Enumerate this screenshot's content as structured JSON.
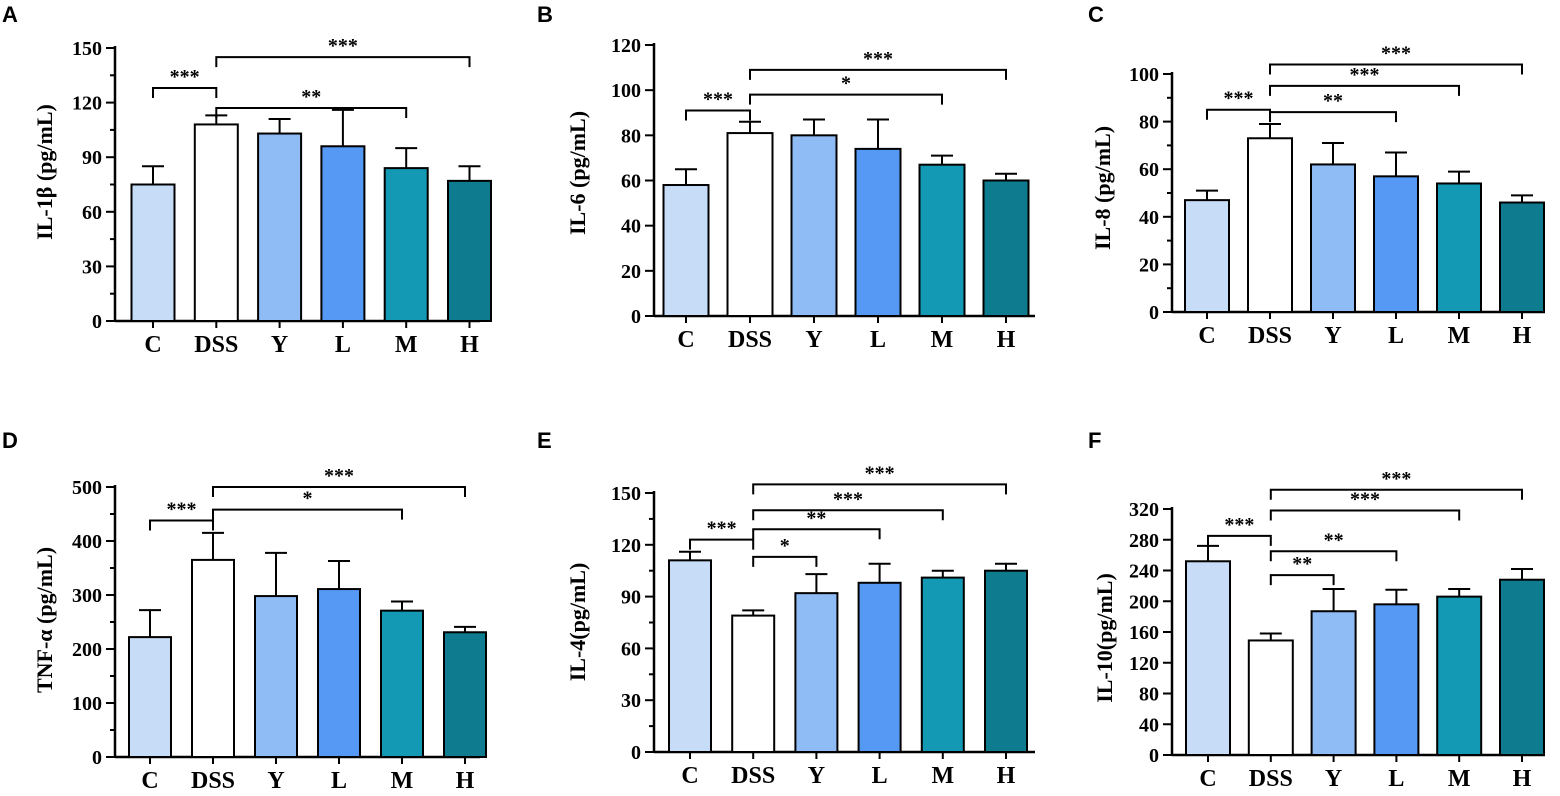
{
  "colors": {
    "C": "#c6dcf7",
    "DSS": "#ffffff",
    "Y": "#8fbcf5",
    "L": "#5599f5",
    "M": "#1499b5",
    "H": "#0e7b8e"
  },
  "chart_data": [
    {
      "panel": "A",
      "type": "bar",
      "ylabel": "IL-1β (pg/mL)",
      "categories": [
        "C",
        "DSS",
        "Y",
        "L",
        "M",
        "H"
      ],
      "values": [
        75,
        108,
        103,
        96,
        84,
        77
      ],
      "errors": [
        10,
        5,
        8,
        20,
        11,
        8
      ],
      "ylim": [
        0,
        150
      ],
      "yticks": [
        0,
        30,
        60,
        90,
        120,
        150
      ],
      "minor_ticks": 1,
      "significance": [
        {
          "from": 0,
          "to": 1,
          "label": "***",
          "y": 128
        },
        {
          "from": 1,
          "to": 4,
          "label": "**",
          "y": 117
        },
        {
          "from": 1,
          "to": 5,
          "label": "***",
          "y": 145
        }
      ]
    },
    {
      "panel": "B",
      "type": "bar",
      "ylabel": "IL-6 (pg/mL)",
      "categories": [
        "C",
        "DSS",
        "Y",
        "L",
        "M",
        "H"
      ],
      "values": [
        58,
        81,
        80,
        74,
        67,
        60
      ],
      "errors": [
        7,
        5,
        7,
        13,
        4,
        3
      ],
      "ylim": [
        0,
        120
      ],
      "yticks": [
        0,
        20,
        40,
        60,
        80,
        100,
        120
      ],
      "minor_ticks": 0,
      "significance": [
        {
          "from": 0,
          "to": 1,
          "label": "***",
          "y": 91
        },
        {
          "from": 1,
          "to": 4,
          "label": "*",
          "y": 98
        },
        {
          "from": 1,
          "to": 5,
          "label": "***",
          "y": 109
        }
      ]
    },
    {
      "panel": "C",
      "type": "bar",
      "ylabel": "IL-8 (pg/mL)",
      "categories": [
        "C",
        "DSS",
        "Y",
        "L",
        "M",
        "H"
      ],
      "values": [
        47,
        73,
        62,
        57,
        54,
        46
      ],
      "errors": [
        4,
        6,
        9,
        10,
        5,
        3
      ],
      "ylim": [
        0,
        100
      ],
      "yticks": [
        0,
        20,
        40,
        60,
        80,
        100
      ],
      "minor_ticks": 1,
      "significance": [
        {
          "from": 0,
          "to": 1,
          "label": "***",
          "y": 85
        },
        {
          "from": 1,
          "to": 3,
          "label": "**",
          "y": 84
        },
        {
          "from": 1,
          "to": 4,
          "label": "***",
          "y": 95
        },
        {
          "from": 1,
          "to": 5,
          "label": "***",
          "y": 104
        }
      ]
    },
    {
      "panel": "D",
      "type": "bar",
      "ylabel": "TNF-α (pg/mL)",
      "categories": [
        "C",
        "DSS",
        "Y",
        "L",
        "M",
        "H"
      ],
      "values": [
        222,
        365,
        298,
        311,
        271,
        231
      ],
      "errors": [
        50,
        50,
        80,
        52,
        17,
        10
      ],
      "ylim": [
        0,
        500
      ],
      "yticks": [
        0,
        100,
        200,
        300,
        400,
        500
      ],
      "minor_ticks": 1,
      "significance": [
        {
          "from": 0,
          "to": 1,
          "label": "***",
          "y": 438
        },
        {
          "from": 1,
          "to": 4,
          "label": "*",
          "y": 458
        },
        {
          "from": 1,
          "to": 5,
          "label": "***",
          "y": 500
        }
      ]
    },
    {
      "panel": "E",
      "type": "bar",
      "ylabel": "IL-4(pg/mL)",
      "categories": [
        "C",
        "DSS",
        "Y",
        "L",
        "M",
        "H"
      ],
      "values": [
        111,
        79,
        92,
        98,
        101,
        105
      ],
      "errors": [
        5,
        3,
        11,
        11,
        4,
        4
      ],
      "ylim": [
        0,
        150
      ],
      "yticks": [
        0,
        30,
        60,
        90,
        120,
        150
      ],
      "minor_ticks": 1,
      "significance": [
        {
          "from": 0,
          "to": 1,
          "label": "***",
          "y": 123
        },
        {
          "from": 1,
          "to": 2,
          "label": "*",
          "y": 113
        },
        {
          "from": 1,
          "to": 3,
          "label": "**",
          "y": 129
        },
        {
          "from": 1,
          "to": 4,
          "label": "***",
          "y": 140
        },
        {
          "from": 1,
          "to": 5,
          "label": "***",
          "y": 155
        }
      ]
    },
    {
      "panel": "F",
      "type": "bar",
      "ylabel": "IL-10(pg/mL)",
      "categories": [
        "C",
        "DSS",
        "Y",
        "L",
        "M",
        "H"
      ],
      "values": [
        252,
        149,
        187,
        196,
        206,
        228
      ],
      "errors": [
        20,
        9,
        29,
        19,
        10,
        14
      ],
      "ylim": [
        0,
        320
      ],
      "yticks": [
        0,
        40,
        80,
        120,
        160,
        200,
        240,
        280,
        320
      ],
      "minor_ticks": 0,
      "significance": [
        {
          "from": 0,
          "to": 1,
          "label": "***",
          "y": 285
        },
        {
          "from": 1,
          "to": 2,
          "label": "**",
          "y": 234
        },
        {
          "from": 1,
          "to": 3,
          "label": "**",
          "y": 265
        },
        {
          "from": 1,
          "to": 4,
          "label": "***",
          "y": 318
        },
        {
          "from": 1,
          "to": 5,
          "label": "***",
          "y": 345
        }
      ]
    }
  ]
}
